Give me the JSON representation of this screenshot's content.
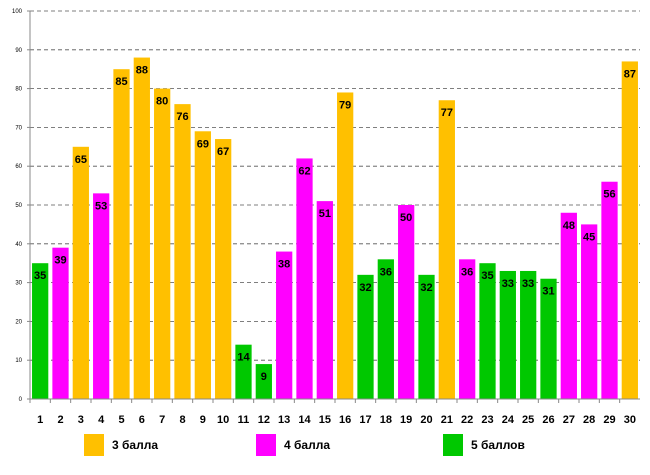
{
  "chart_data": {
    "type": "bar",
    "categories": [
      "1",
      "2",
      "3",
      "4",
      "5",
      "6",
      "7",
      "8",
      "9",
      "10",
      "11",
      "12",
      "13",
      "14",
      "15",
      "16",
      "17",
      "18",
      "19",
      "20",
      "21",
      "22",
      "23",
      "24",
      "25",
      "26",
      "27",
      "28",
      "29",
      "30"
    ],
    "values": [
      35,
      39,
      65,
      53,
      85,
      88,
      80,
      76,
      69,
      67,
      14,
      9,
      38,
      62,
      51,
      79,
      32,
      36,
      50,
      32,
      77,
      36,
      35,
      33,
      33,
      31,
      48,
      45,
      56,
      87
    ],
    "groups": [
      "5",
      "4",
      "3",
      "4",
      "3",
      "3",
      "3",
      "3",
      "3",
      "3",
      "5",
      "5",
      "4",
      "4",
      "4",
      "3",
      "5",
      "5",
      "4",
      "5",
      "3",
      "4",
      "5",
      "5",
      "5",
      "5",
      "4",
      "4",
      "4",
      "3"
    ],
    "legend": [
      {
        "key": "3",
        "label": "3 балла",
        "color": "#FFC000"
      },
      {
        "key": "4",
        "label": "4 балла",
        "color": "#FF00FF"
      },
      {
        "key": "5",
        "label": "5 баллов",
        "color": "#00C800"
      }
    ],
    "ylim": [
      0,
      100
    ],
    "yticks": [
      0,
      10,
      20,
      30,
      40,
      50,
      60,
      70,
      80,
      90,
      100
    ],
    "grid": true,
    "legend_position": "bottom"
  }
}
